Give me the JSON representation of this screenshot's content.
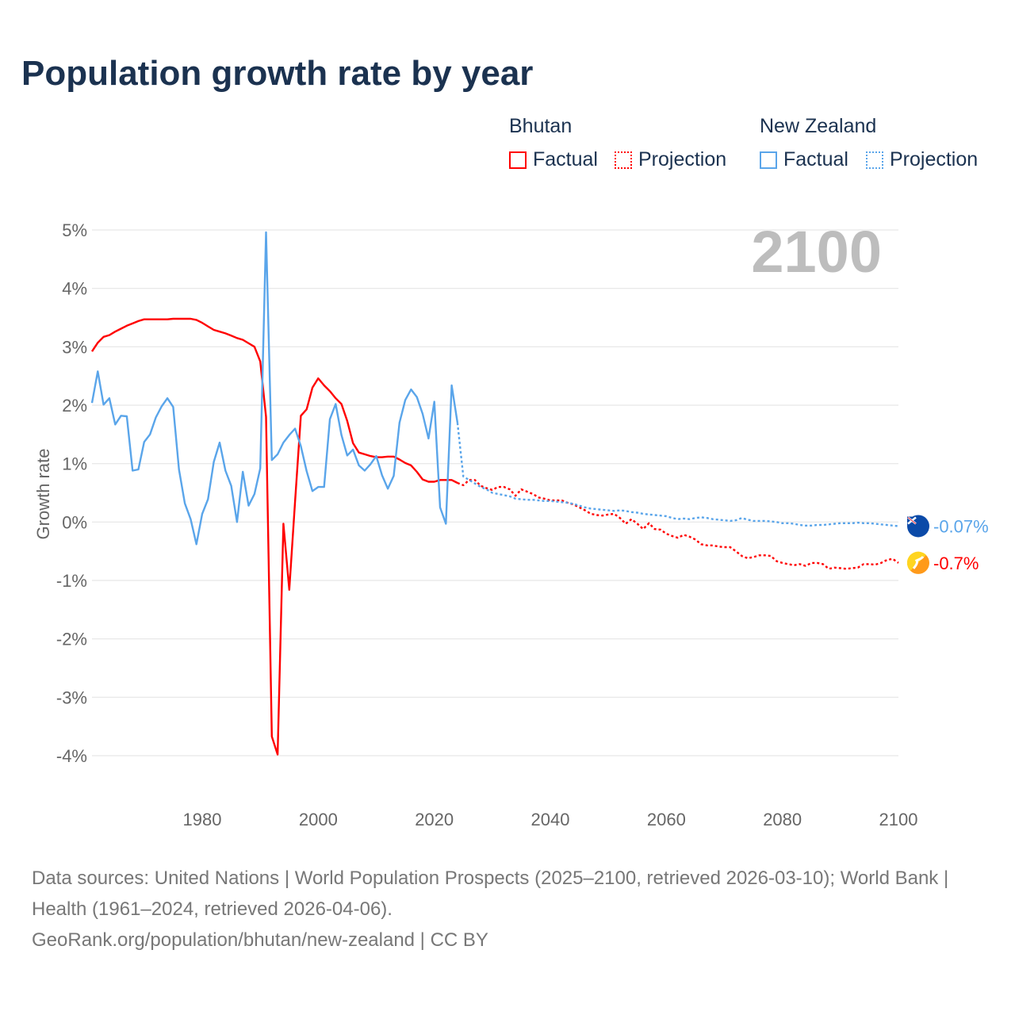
{
  "title": "Population growth rate by year",
  "legend": {
    "groups": [
      {
        "name": "Bhutan",
        "items": [
          "Factual",
          "Projection"
        ],
        "color": "#ff0000"
      },
      {
        "name": "New Zealand",
        "items": [
          "Factual",
          "Projection"
        ],
        "color": "#5aa5ea"
      }
    ]
  },
  "footer": {
    "sources": "Data sources: United Nations | World Population Prospects (2025–2100, retrieved 2026-03-10); World Bank | Health (1961–2024, retrieved 2026-04-06).",
    "link": "GeoRank.org/population/bhutan/new-zealand | CC BY"
  },
  "chart_data": {
    "type": "line",
    "title": "Population growth rate by year",
    "ylabel": "Growth rate",
    "xlabel": "",
    "current_year_label": "2100",
    "xlim": [
      1961,
      2100
    ],
    "ylim": [
      -4,
      5
    ],
    "x_ticks": [
      1980,
      2000,
      2020,
      2040,
      2060,
      2080,
      2100
    ],
    "x_tick_labels": [
      "1980",
      "2000",
      "2020",
      "2040",
      "2060",
      "2080",
      "2100"
    ],
    "y_ticks": [
      5,
      4,
      3,
      2,
      1,
      0,
      -1,
      -2,
      -3,
      -4
    ],
    "y_tick_labels": [
      "5%",
      "4%",
      "3%",
      "2%",
      "1%",
      "0%",
      "-1%",
      "-2%",
      "-3%",
      "-4%"
    ],
    "grid": true,
    "legend_position": "top-right",
    "series": [
      {
        "name": "Bhutan",
        "kind": "Factual",
        "color": "#ff0000",
        "start_year": 1961,
        "values": [
          2.92,
          3.07,
          3.17,
          3.2,
          3.26,
          3.31,
          3.36,
          3.4,
          3.44,
          3.47,
          3.47,
          3.47,
          3.47,
          3.47,
          3.48,
          3.48,
          3.48,
          3.48,
          3.46,
          3.41,
          3.35,
          3.29,
          3.26,
          3.23,
          3.19,
          3.15,
          3.12,
          3.06,
          3.0,
          2.75,
          1.8,
          -3.67,
          -3.98,
          -0.03,
          -1.16,
          0.35,
          1.82,
          1.93,
          2.3,
          2.46,
          2.34,
          2.24,
          2.12,
          2.02,
          1.73,
          1.35,
          1.19,
          1.16,
          1.13,
          1.11,
          1.11,
          1.12,
          1.12,
          1.07,
          1.01,
          0.97,
          0.86,
          0.73,
          0.69,
          0.69,
          0.72,
          0.72,
          0.72,
          0.67
        ]
      },
      {
        "name": "Bhutan",
        "kind": "Projection",
        "color": "#ff0000",
        "start_year": 2024,
        "values": [
          0.67,
          0.63,
          0.72,
          0.72,
          0.62,
          0.58,
          0.55,
          0.6,
          0.6,
          0.56,
          0.45,
          0.56,
          0.52,
          0.48,
          0.42,
          0.4,
          0.37,
          0.37,
          0.37,
          0.33,
          0.3,
          0.25,
          0.2,
          0.14,
          0.12,
          0.11,
          0.13,
          0.14,
          0.07,
          -0.03,
          0.05,
          -0.03,
          -0.12,
          -0.02,
          -0.12,
          -0.13,
          -0.2,
          -0.24,
          -0.27,
          -0.22,
          -0.25,
          -0.3,
          -0.38,
          -0.4,
          -0.4,
          -0.42,
          -0.43,
          -0.43,
          -0.5,
          -0.58,
          -0.62,
          -0.6,
          -0.57,
          -0.57,
          -0.58,
          -0.67,
          -0.7,
          -0.72,
          -0.74,
          -0.72,
          -0.75,
          -0.7,
          -0.7,
          -0.72,
          -0.8,
          -0.78,
          -0.79,
          -0.8,
          -0.79,
          -0.78,
          -0.72,
          -0.72,
          -0.73,
          -0.7,
          -0.65,
          -0.63,
          -0.7
        ]
      },
      {
        "name": "New Zealand",
        "kind": "Factual",
        "color": "#5aa5ea",
        "start_year": 1961,
        "values": [
          2.04,
          2.58,
          2.01,
          2.12,
          1.67,
          1.82,
          1.81,
          0.88,
          0.9,
          1.37,
          1.5,
          1.79,
          1.98,
          2.12,
          1.97,
          0.9,
          0.32,
          0.05,
          -0.38,
          0.14,
          0.39,
          1.03,
          1.36,
          0.88,
          0.62,
          0.0,
          0.86,
          0.28,
          0.48,
          0.92,
          4.96,
          1.06,
          1.16,
          1.36,
          1.49,
          1.6,
          1.3,
          0.87,
          0.53,
          0.6,
          0.6,
          1.76,
          2.02,
          1.49,
          1.14,
          1.24,
          0.97,
          0.88,
          0.99,
          1.13,
          0.8,
          0.57,
          0.79,
          1.7,
          2.09,
          2.27,
          2.14,
          1.85,
          1.43,
          2.06,
          0.25,
          -0.03,
          2.34,
          1.7
        ]
      },
      {
        "name": "New Zealand",
        "kind": "Projection",
        "color": "#5aa5ea",
        "start_year": 2024,
        "values": [
          1.7,
          0.78,
          0.72,
          0.66,
          0.6,
          0.56,
          0.5,
          0.48,
          0.46,
          0.44,
          0.4,
          0.39,
          0.38,
          0.38,
          0.37,
          0.36,
          0.36,
          0.35,
          0.34,
          0.33,
          0.31,
          0.28,
          0.25,
          0.23,
          0.22,
          0.21,
          0.2,
          0.19,
          0.2,
          0.19,
          0.17,
          0.16,
          0.14,
          0.13,
          0.12,
          0.11,
          0.1,
          0.07,
          0.05,
          0.06,
          0.05,
          0.07,
          0.08,
          0.07,
          0.05,
          0.04,
          0.03,
          0.02,
          0.03,
          0.07,
          0.04,
          0.02,
          0.02,
          0.02,
          0.01,
          0.0,
          -0.02,
          -0.02,
          -0.03,
          -0.05,
          -0.06,
          -0.06,
          -0.05,
          -0.05,
          -0.04,
          -0.03,
          -0.02,
          -0.02,
          -0.02,
          -0.01,
          -0.02,
          -0.02,
          -0.03,
          -0.04,
          -0.05,
          -0.06,
          -0.07
        ]
      }
    ],
    "end_labels": [
      {
        "country": "New Zealand",
        "text": "-0.07%",
        "value": -0.07,
        "color": "#5aa5ea"
      },
      {
        "country": "Bhutan",
        "text": "-0.7%",
        "value": -0.7,
        "color": "#ff0000"
      }
    ]
  }
}
